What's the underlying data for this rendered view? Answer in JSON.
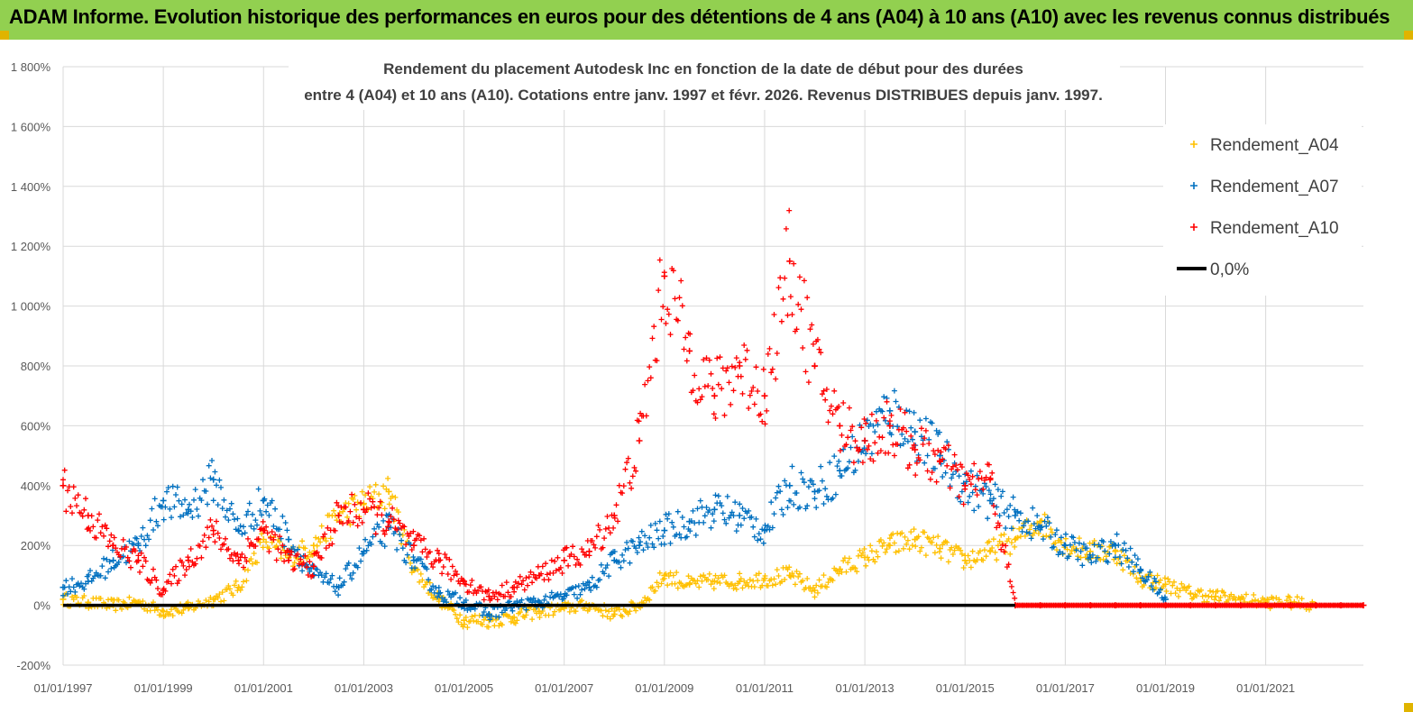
{
  "header": {
    "title": "ADAM Informe. Evolution historique des performances en euros pour des détentions de 4 ans (A04) à 10 ans (A10) avec les revenus connus distribués"
  },
  "colors": {
    "banner": "#92d050",
    "a04": "#ffc000",
    "a07": "#0070c0",
    "a10": "#ff0000",
    "zero": "#000000",
    "grid": "#d9d9d9"
  },
  "chart_data": {
    "type": "scatter",
    "title_line1": "Rendement du placement Autodesk Inc en fonction de la date de début pour des durées",
    "title_line2": "entre 4 (A04) et 10 ans (A10).  Cotations entre janv. 1997 et févr. 2026. Revenus DISTRIBUES depuis janv. 1997.",
    "xlabel": "",
    "ylabel": "",
    "xlim": [
      1997.0,
      2022.95
    ],
    "ylim": [
      -200,
      1800
    ],
    "yticks": [
      -200,
      0,
      200,
      400,
      600,
      800,
      1000,
      1200,
      1400,
      1600,
      1800
    ],
    "ytick_labels": [
      "-200%",
      "0%",
      "200%",
      "400%",
      "600%",
      "800%",
      "1 000%",
      "1 200%",
      "1 400%",
      "1 600%",
      "1 800%"
    ],
    "xtick_labels": [
      "01/01/1997",
      "01/01/1999",
      "01/01/2001",
      "01/01/2003",
      "01/01/2005",
      "01/01/2007",
      "01/01/2009",
      "01/01/2011",
      "01/01/2013",
      "01/01/2015",
      "01/01/2017",
      "01/01/2019",
      "01/01/2021"
    ],
    "legend": [
      "Rendement_A04",
      "Rendement_A07",
      "Rendement_A10",
      "0,0%"
    ],
    "legend_position": "top-right",
    "series": [
      {
        "name": "Rendement_A04",
        "x": [
          1997.0,
          1997.5,
          1998.0,
          1998.5,
          1999.0,
          1999.5,
          2000.0,
          2000.5,
          2001.0,
          2001.5,
          2002.0,
          2002.5,
          2003.0,
          2003.5,
          2004.0,
          2004.5,
          2005.0,
          2005.5,
          2006.0,
          2006.5,
          2007.0,
          2007.5,
          2008.0,
          2008.5,
          2009.0,
          2009.5,
          2010.0,
          2010.5,
          2011.0,
          2011.5,
          2012.0,
          2012.5,
          2013.0,
          2013.5,
          2014.0,
          2014.5,
          2015.0,
          2015.5,
          2016.0,
          2016.5,
          2017.0,
          2017.5,
          2018.0,
          2018.5,
          2019.0,
          2019.5,
          2020.0,
          2020.5,
          2021.0,
          2021.5,
          2022.0
        ],
        "y": [
          20,
          10,
          0,
          10,
          -20,
          -10,
          20,
          60,
          220,
          160,
          200,
          300,
          340,
          380,
          120,
          20,
          -50,
          -50,
          -40,
          -20,
          -10,
          0,
          -30,
          0,
          100,
          70,
          80,
          80,
          90,
          100,
          50,
          120,
          160,
          200,
          220,
          190,
          150,
          180,
          220,
          280,
          200,
          180,
          180,
          90,
          70,
          40,
          30,
          20,
          10,
          10,
          0
        ]
      },
      {
        "name": "Rendement_A07",
        "x": [
          1997.0,
          1997.5,
          1998.0,
          1998.5,
          1999.0,
          1999.5,
          2000.0,
          2000.5,
          2001.0,
          2001.5,
          2002.0,
          2002.5,
          2003.0,
          2003.5,
          2004.0,
          2004.5,
          2005.0,
          2005.5,
          2006.0,
          2006.5,
          2007.0,
          2007.5,
          2008.0,
          2008.5,
          2009.0,
          2009.5,
          2010.0,
          2010.5,
          2011.0,
          2011.5,
          2012.0,
          2012.5,
          2013.0,
          2013.5,
          2014.0,
          2014.5,
          2015.0,
          2015.5,
          2016.0,
          2016.5,
          2017.0,
          2017.5,
          2018.0,
          2018.5,
          2019.0
        ],
        "y": [
          60,
          80,
          150,
          200,
          350,
          320,
          420,
          250,
          350,
          220,
          100,
          60,
          180,
          260,
          150,
          40,
          10,
          -30,
          0,
          10,
          30,
          60,
          150,
          200,
          250,
          280,
          320,
          300,
          250,
          400,
          380,
          450,
          550,
          650,
          580,
          500,
          400,
          350,
          300,
          260,
          200,
          160,
          200,
          120,
          20
        ]
      },
      {
        "name": "Rendement_A10",
        "x": [
          1997.0,
          1997.5,
          1998.0,
          1998.5,
          1999.0,
          1999.5,
          2000.0,
          2000.5,
          2001.0,
          2001.5,
          2002.0,
          2002.5,
          2003.0,
          2003.5,
          2004.0,
          2004.5,
          2005.0,
          2005.5,
          2006.0,
          2006.5,
          2007.0,
          2007.5,
          2008.0,
          2008.5,
          2009.0,
          2009.5,
          2010.0,
          2010.5,
          2011.0,
          2011.5,
          2012.0,
          2012.5,
          2013.0,
          2013.5,
          2014.0,
          2014.5,
          2015.0,
          2015.5,
          2016.0,
          2016.5,
          2017.0,
          2017.5,
          2018.0,
          2018.5,
          2019.0,
          2019.5,
          2020.0,
          2020.5,
          2021.0,
          2021.5,
          2022.0,
          2022.5,
          2022.95
        ],
        "y": [
          400,
          300,
          200,
          150,
          50,
          150,
          250,
          150,
          250,
          150,
          130,
          300,
          320,
          280,
          200,
          150,
          80,
          30,
          60,
          100,
          150,
          180,
          300,
          550,
          1100,
          850,
          700,
          800,
          700,
          1150,
          800,
          600,
          550,
          600,
          520,
          480,
          400,
          420,
          0,
          0,
          0,
          0,
          0,
          0,
          0,
          0,
          0,
          0,
          0,
          0,
          0,
          0,
          0
        ]
      },
      {
        "name": "0,0%",
        "x": [
          1997.0,
          2022.95
        ],
        "y": [
          0,
          0
        ]
      }
    ]
  }
}
